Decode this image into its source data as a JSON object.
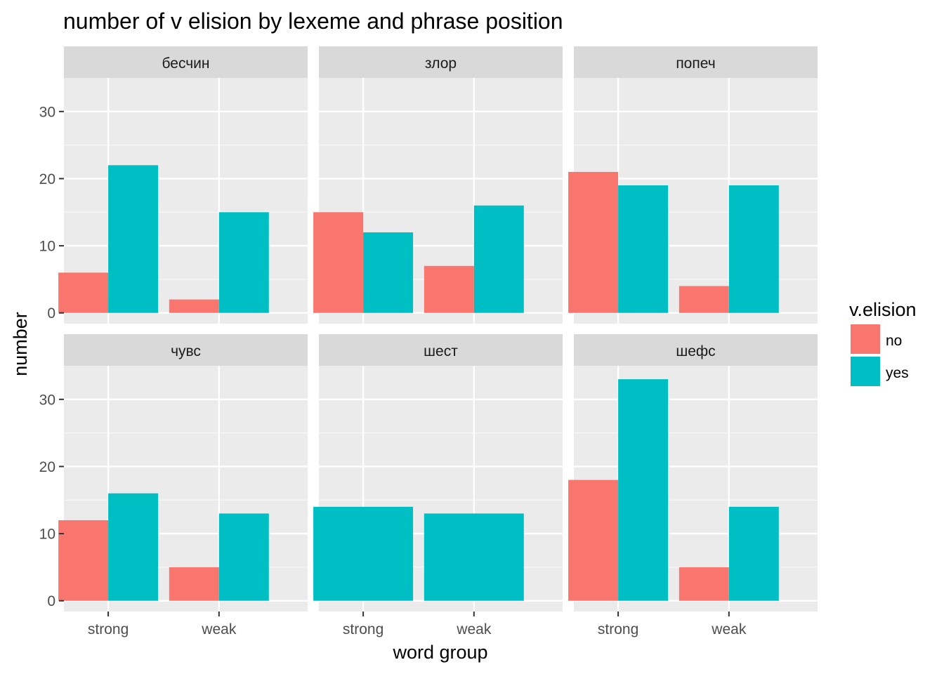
{
  "chart_data": {
    "type": "bar",
    "title": "number of v elision by lexeme and phrase position",
    "xlabel": "word group",
    "ylabel": "number",
    "categories": [
      "strong",
      "weak"
    ],
    "ylim": [
      -1.6,
      35
    ],
    "yticks": [
      0,
      10,
      20,
      30
    ],
    "grid": true,
    "legend": {
      "title": "v.elision",
      "position": "right",
      "entries": [
        {
          "name": "no",
          "color": "#F8766D"
        },
        {
          "name": "yes",
          "color": "#00BFC4"
        }
      ]
    },
    "facets": [
      {
        "label": "бесчин",
        "series": [
          {
            "name": "no",
            "values": [
              6,
              2
            ]
          },
          {
            "name": "yes",
            "values": [
              22,
              15
            ]
          }
        ]
      },
      {
        "label": "злор",
        "series": [
          {
            "name": "no",
            "values": [
              15,
              7
            ]
          },
          {
            "name": "yes",
            "values": [
              12,
              16
            ]
          }
        ]
      },
      {
        "label": "попеч",
        "series": [
          {
            "name": "no",
            "values": [
              21,
              4
            ]
          },
          {
            "name": "yes",
            "values": [
              19,
              19
            ]
          }
        ]
      },
      {
        "label": "чувс",
        "series": [
          {
            "name": "no",
            "values": [
              12,
              5
            ]
          },
          {
            "name": "yes",
            "values": [
              16,
              13
            ]
          }
        ]
      },
      {
        "label": "шест",
        "series": [
          {
            "name": "no",
            "values": [
              null,
              null
            ]
          },
          {
            "name": "yes",
            "values": [
              14,
              13
            ]
          }
        ]
      },
      {
        "label": "шефс",
        "series": [
          {
            "name": "no",
            "values": [
              18,
              5
            ]
          },
          {
            "name": "yes",
            "values": [
              33,
              14
            ]
          }
        ]
      }
    ]
  }
}
